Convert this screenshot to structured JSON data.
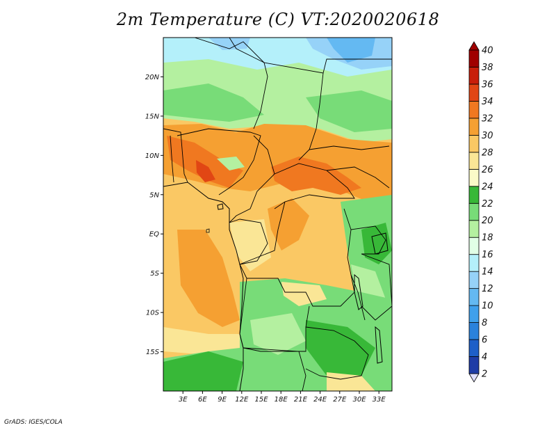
{
  "title": "2m Temperature (C) VT:2020020618",
  "credit": "GrADS: IGES/COLA",
  "map": {
    "lon_range": [
      0,
      35
    ],
    "lat_range": [
      -20,
      25
    ],
    "x_ticks": [
      "3E",
      "6E",
      "9E",
      "12E",
      "15E",
      "18E",
      "21E",
      "24E",
      "27E",
      "30E",
      "33E"
    ],
    "y_ticks": [
      "20N",
      "15N",
      "10N",
      "5N",
      "EQ",
      "5S",
      "10S",
      "15S"
    ]
  },
  "colorbar": {
    "levels": [
      "2",
      "4",
      "6",
      "8",
      "10",
      "12",
      "14",
      "16",
      "18",
      "20",
      "22",
      "24",
      "26",
      "28",
      "30",
      "32",
      "34",
      "36",
      "38",
      "40"
    ],
    "colors": [
      "#1a0a78",
      "#1e3ca6",
      "#1e5fc8",
      "#2a82dc",
      "#3fa0ec",
      "#64b9f2",
      "#96d2f8",
      "#b4f0fa",
      "#e1ffe6",
      "#b4f0a0",
      "#78dc78",
      "#38b838",
      "#fafac8",
      "#fae696",
      "#fac864",
      "#f5a032",
      "#f07820",
      "#e14614",
      "#c81e0a",
      "#a00000"
    ],
    "under_color": "#e0e0ff",
    "over_color": "#a00000"
  },
  "regions": {
    "sahara": "#b4f0fa",
    "sahel": "#b4f0a0",
    "hot_belt": "#f07820",
    "warm": "#fac864",
    "ocean": "#fac864",
    "mild": "#fae696",
    "highland": "#78dc78",
    "cool_highland": "#38b838"
  }
}
